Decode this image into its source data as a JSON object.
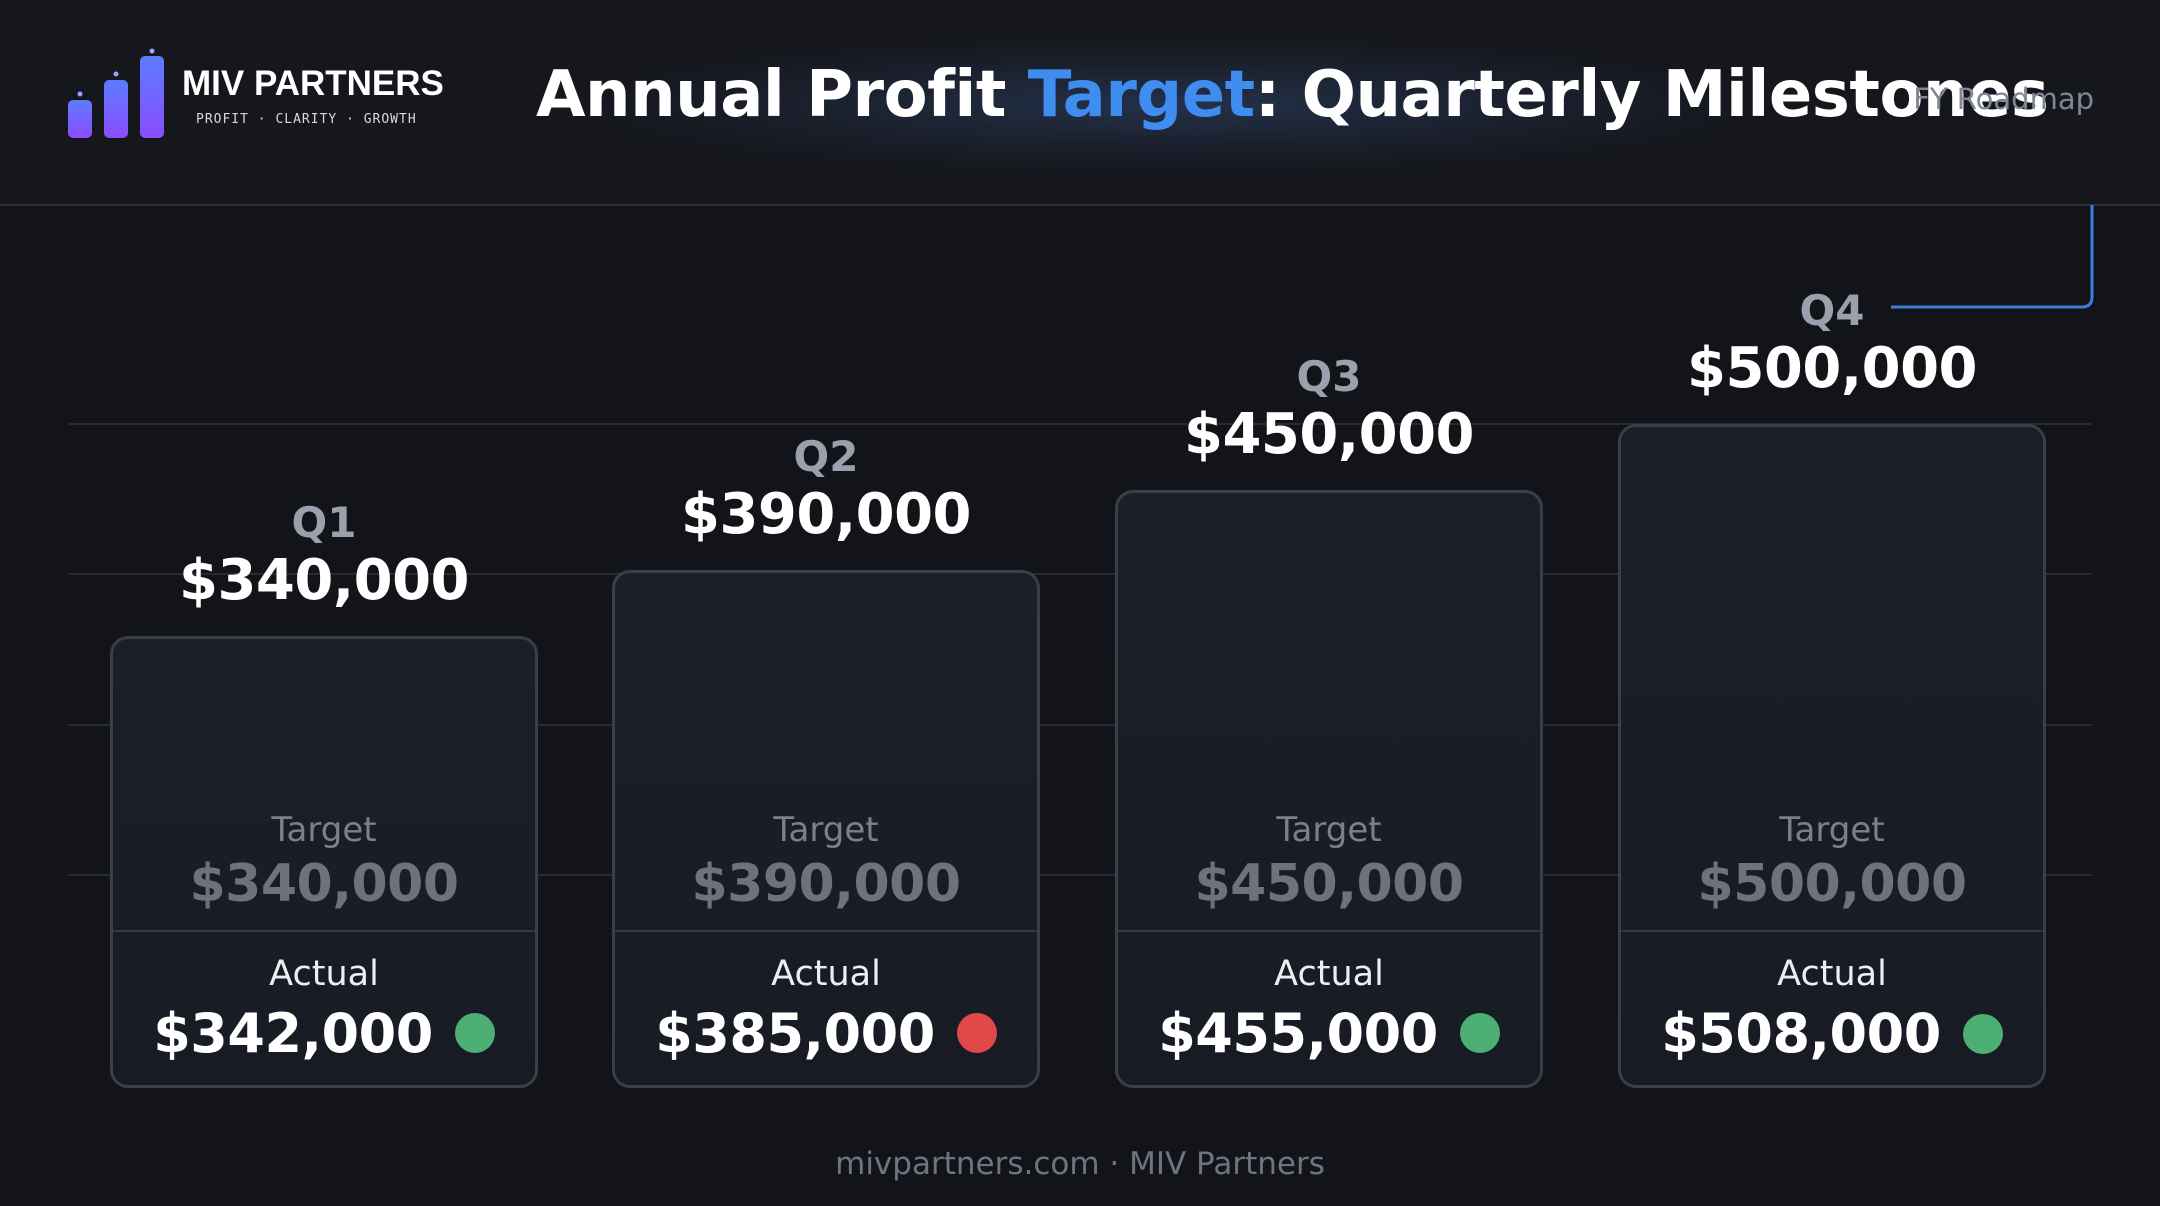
{
  "header": {
    "brand_name": "MIV PARTNERS",
    "brand_tagline": "PROFIT · CLARITY · GROWTH",
    "title_prefix": "Annual Profit ",
    "title_accent": "Target",
    "title_suffix": ": Quarterly Milestones",
    "tag": "FY Roadmap"
  },
  "footer": {
    "text": "mivpartners.com · MIV Partners"
  },
  "colors": {
    "accent": "#3f8df0",
    "on_track": "#4caf73",
    "below_target": "#e0484a",
    "logo_gradient_top": "#5b7cff",
    "logo_gradient_bottom": "#8a4dff"
  },
  "cards": {
    "target_label": "Target",
    "actual_label": "Actual"
  },
  "chart_data": {
    "type": "bar",
    "title": "Annual Profit Target: Quarterly Milestones",
    "categories": [
      "Q1",
      "Q2",
      "Q3",
      "Q4"
    ],
    "series": [
      {
        "name": "Target",
        "values": [
          340000,
          390000,
          450000,
          500000
        ]
      },
      {
        "name": "Actual",
        "values": [
          342000,
          385000,
          455000,
          508000
        ]
      }
    ],
    "labels": {
      "target": [
        "$340,000",
        "$390,000",
        "$450,000",
        "$500,000"
      ],
      "actual": [
        "$342,000",
        "$385,000",
        "$455,000",
        "$508,000"
      ]
    },
    "status": [
      "on-track",
      "below-target",
      "on-track",
      "on-track"
    ],
    "grid": true,
    "xlabel": "",
    "ylabel": ""
  }
}
